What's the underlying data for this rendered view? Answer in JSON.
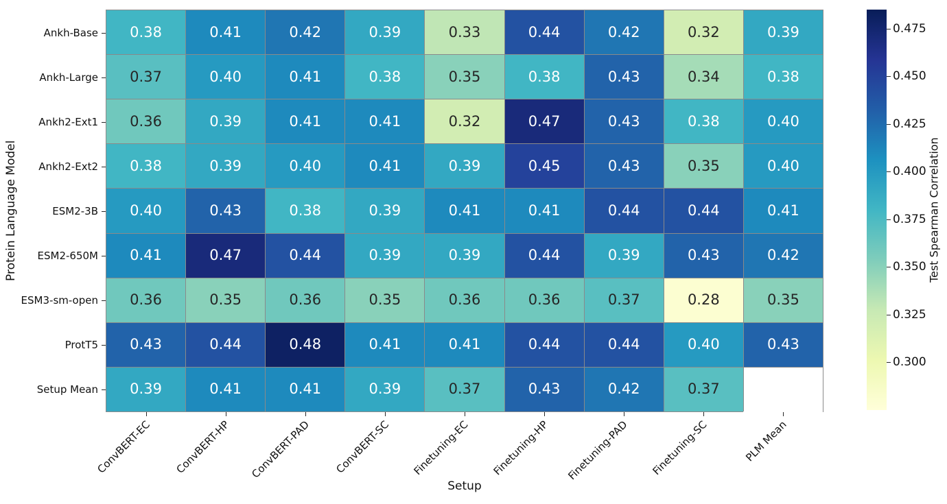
{
  "chart_data": {
    "type": "heatmap",
    "title": "",
    "xlabel": "Setup",
    "ylabel": "Protein Language Model",
    "colorbar_label": "Test Spearman Correlation",
    "x_categories": [
      "ConvBERT-EC",
      "ConvBERT-HP",
      "ConvBERT-PAD",
      "ConvBERT-SC",
      "Finetuning-EC",
      "Finetuning-HP",
      "Finetuning-PAD",
      "Finetuning-SC",
      "PLM Mean"
    ],
    "y_categories": [
      "Ankh-Base",
      "Ankh-Large",
      "Ankh2-Ext1",
      "Ankh2-Ext2",
      "ESM2-3B",
      "ESM2-650M",
      "ESM3-sm-open",
      "ProtT5",
      "Setup Mean"
    ],
    "values": [
      [
        0.38,
        0.41,
        0.42,
        0.39,
        0.33,
        0.44,
        0.42,
        0.32,
        0.39
      ],
      [
        0.37,
        0.4,
        0.41,
        0.38,
        0.35,
        0.38,
        0.43,
        0.34,
        0.38
      ],
      [
        0.36,
        0.39,
        0.41,
        0.41,
        0.32,
        0.47,
        0.43,
        0.38,
        0.4
      ],
      [
        0.38,
        0.39,
        0.4,
        0.41,
        0.39,
        0.45,
        0.43,
        0.35,
        0.4
      ],
      [
        0.4,
        0.43,
        0.38,
        0.39,
        0.41,
        0.41,
        0.44,
        0.44,
        0.41
      ],
      [
        0.41,
        0.47,
        0.44,
        0.39,
        0.39,
        0.44,
        0.39,
        0.43,
        0.42
      ],
      [
        0.36,
        0.35,
        0.36,
        0.35,
        0.36,
        0.36,
        0.37,
        0.28,
        0.35
      ],
      [
        0.43,
        0.44,
        0.48,
        0.41,
        0.41,
        0.44,
        0.44,
        0.4,
        0.43
      ],
      [
        0.39,
        0.41,
        0.41,
        0.39,
        0.37,
        0.43,
        0.42,
        0.37,
        null
      ]
    ],
    "value_format_decimals": 2,
    "vmin": 0.275,
    "vmax": 0.485,
    "colormap": "YlGnBu",
    "colormap_stops": [
      {
        "pos": 0.0,
        "color": "#ffffd9"
      },
      {
        "pos": 0.125,
        "color": "#edf8b1"
      },
      {
        "pos": 0.25,
        "color": "#c7e9b4"
      },
      {
        "pos": 0.375,
        "color": "#7fcdbb"
      },
      {
        "pos": 0.5,
        "color": "#41b6c4"
      },
      {
        "pos": 0.625,
        "color": "#1d91c0"
      },
      {
        "pos": 0.75,
        "color": "#225ea8"
      },
      {
        "pos": 0.875,
        "color": "#253494"
      },
      {
        "pos": 1.0,
        "color": "#081d58"
      }
    ],
    "colorbar_ticks": [
      0.3,
      0.325,
      0.35,
      0.375,
      0.4,
      0.425,
      0.45,
      0.475
    ],
    "colorbar_tick_decimals": 3,
    "layout": {
      "legend": "colorbar-right",
      "grid_line_color": "#8a8a8a",
      "empty_cell_color": "#ffffff",
      "annotation_color_dark": "#262626",
      "annotation_color_light": "#ffffff",
      "tick_color": "#111111",
      "background": "#ffffff",
      "x_tick_rotation_deg": 45
    }
  }
}
